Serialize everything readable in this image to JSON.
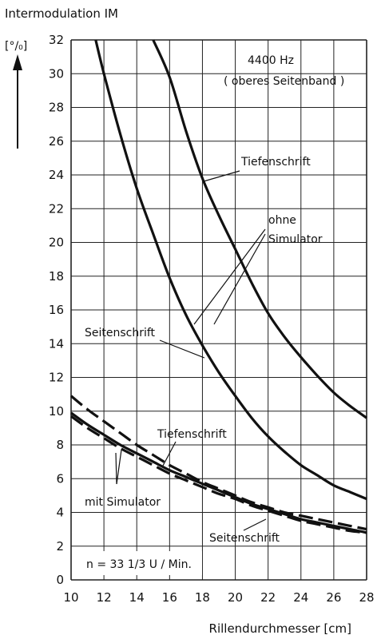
{
  "chart_data": {
    "type": "line",
    "ylabel_title": "Intermodulation IM",
    "ylabel_unit": "[°/₀]",
    "xlabel": "Rillendurchmesser  [cm]",
    "xlim": [
      10,
      28
    ],
    "ylim": [
      0,
      32
    ],
    "x_ticks": [
      10,
      12,
      14,
      16,
      18,
      20,
      22,
      24,
      26,
      28
    ],
    "y_ticks": [
      0,
      2,
      4,
      6,
      8,
      10,
      12,
      14,
      16,
      18,
      20,
      22,
      24,
      26,
      28,
      30,
      32
    ],
    "grid": true,
    "annotations": {
      "freq": "4400 Hz",
      "band": "( oberes  Seitenband )",
      "tiefenschrift_upper": "Tiefenschrift",
      "ohne_1": "ohne",
      "ohne_2": "Simulator",
      "seitenschrift_upper": "Seitenschrift",
      "tiefenschrift_lower": "Tiefenschrift",
      "mit_simulator": "mit  Simulator",
      "seitenschrift_lower": "Seitenschrift",
      "speed": "n = 33 1/3 U / Min."
    },
    "series": [
      {
        "style": "solid",
        "x": [
          11.5,
          12,
          13,
          14,
          15,
          16,
          17,
          18,
          19,
          20,
          21,
          22,
          23,
          24,
          25,
          26,
          27,
          28
        ],
        "values": [
          32,
          30,
          26.4,
          23.2,
          20.5,
          17.9,
          15.7,
          13.9,
          12.3,
          10.9,
          9.6,
          8.5,
          7.6,
          6.8,
          6.2,
          5.6,
          5.2,
          4.8
        ]
      },
      {
        "style": "solid",
        "x": [
          15.0,
          16,
          17,
          18,
          19,
          20,
          21,
          22,
          23,
          24,
          25,
          26,
          27,
          28
        ],
        "values": [
          32,
          29.8,
          26.6,
          23.8,
          21.6,
          19.6,
          17.6,
          15.8,
          14.4,
          13.2,
          12.1,
          11.1,
          10.3,
          9.6
        ]
      },
      {
        "style": "dashed",
        "x": [
          10,
          11,
          12,
          13,
          14,
          15,
          16,
          17,
          18,
          19,
          20,
          21,
          22,
          23,
          24,
          25,
          26,
          27,
          28
        ],
        "values": [
          10.9,
          10.1,
          9.4,
          8.7,
          8.0,
          7.4,
          6.8,
          6.3,
          5.8,
          5.4,
          5.0,
          4.6,
          4.3,
          4.0,
          3.8,
          3.6,
          3.4,
          3.2,
          3.0
        ]
      },
      {
        "style": "solid",
        "x": [
          10,
          11,
          12,
          13,
          14,
          15,
          16,
          17,
          18,
          19,
          20,
          21,
          22,
          23,
          24,
          25,
          26,
          27,
          28
        ],
        "values": [
          9.9,
          9.2,
          8.6,
          8.0,
          7.5,
          7.0,
          6.5,
          6.1,
          5.7,
          5.3,
          4.9,
          4.5,
          4.2,
          3.9,
          3.6,
          3.4,
          3.2,
          3.0,
          2.8
        ]
      },
      {
        "style": "dashed",
        "x": [
          10,
          11,
          12,
          13,
          14,
          15,
          16,
          17,
          18,
          19,
          20,
          21,
          22,
          23,
          24,
          25,
          26,
          27,
          28
        ],
        "values": [
          9.7,
          9.0,
          8.4,
          7.8,
          7.3,
          6.8,
          6.3,
          5.9,
          5.5,
          5.1,
          4.8,
          4.4,
          4.1,
          3.8,
          3.5,
          3.3,
          3.1,
          2.9,
          2.8
        ]
      }
    ]
  }
}
